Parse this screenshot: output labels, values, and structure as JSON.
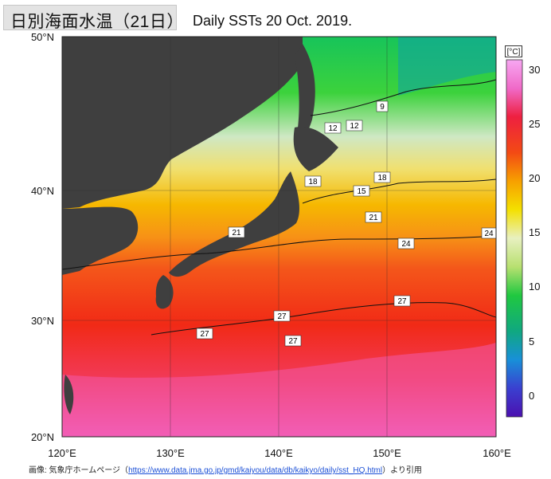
{
  "header": {
    "badge_text": "日別海面水温（21日）",
    "title": "Daily SSTs 20 Oct. 2019."
  },
  "axes": {
    "lat_labels": [
      "50°N",
      "40°N",
      "30°N",
      "20°N"
    ],
    "lon_labels": [
      "120°E",
      "130°E",
      "140°E",
      "150°E",
      "160°E"
    ]
  },
  "colorbar": {
    "unit": "[°C]",
    "ticks": [
      "30",
      "25",
      "20",
      "15",
      "10",
      "5",
      "0"
    ]
  },
  "contour_labels": [
    "9",
    "12",
    "12",
    "18",
    "18",
    "15",
    "21",
    "21",
    "24",
    "24",
    "27",
    "27",
    "27",
    "27"
  ],
  "credit": {
    "prefix": "画像: 気象庁ホームページ（",
    "url": "https://www.data.jma.go.jp/gmd/kaiyou/data/db/kaikyo/daily/sst_HQ.html",
    "suffix": "）より引用"
  }
}
